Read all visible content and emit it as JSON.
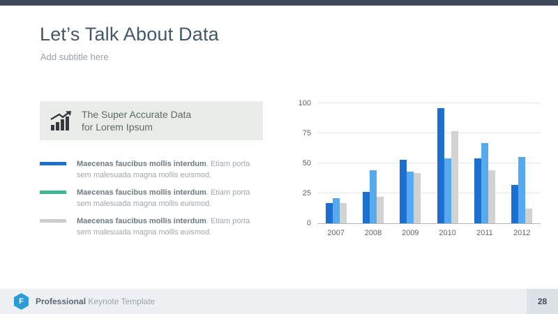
{
  "slide": {
    "title": "Let’s Talk About Data",
    "subtitle": "Add subtitle here"
  },
  "callout": {
    "icon": "bar-chart-growth-icon",
    "line1": "The Super Accurate Data",
    "line2": "for Lorem Ipsum"
  },
  "legend": {
    "items": [
      {
        "color": "#1d70cd",
        "bold": "Maecenas faucibus mollis interdum",
        "rest": ". Etiam porta sem malesuada magna mollis euismod."
      },
      {
        "color": "#3eb892",
        "bold": "Maecenas faucibus mollis interdum",
        "rest": ". Etiam porta sem malesuada magna mollis euismod."
      },
      {
        "color": "#cccccc",
        "bold": "Maecenas faucibus mollis interdum",
        "rest": ". Etiam porta sem malesuada magna mollis euismod."
      }
    ]
  },
  "chart_data": {
    "type": "bar",
    "title": "",
    "xlabel": "",
    "ylabel": "",
    "categories": [
      "2007",
      "2008",
      "2009",
      "2010",
      "2011",
      "2012"
    ],
    "series": [
      {
        "name": "dark-blue",
        "color": "#1d70cd",
        "values": [
          17,
          26,
          53,
          96,
          54,
          32
        ]
      },
      {
        "name": "light-blue",
        "color": "#58aaf0",
        "values": [
          21,
          44,
          43,
          54,
          67,
          55
        ]
      },
      {
        "name": "gray",
        "color": "#d2d2d2",
        "values": [
          17,
          22,
          42,
          77,
          44,
          12
        ]
      }
    ],
    "ylim": [
      0,
      100
    ],
    "yticks": [
      0,
      25,
      50,
      75,
      100
    ],
    "grid": true,
    "legend_position": "left-panel"
  },
  "footer": {
    "logo_letter": "F",
    "brand_bold": "Professional",
    "brand_rest": " Keynote Template",
    "page_number": "28"
  },
  "colors": {
    "top_bar": "#3c4a59",
    "title": "#44576b",
    "callout_bg": "#e9ece9",
    "footer_bg": "#eef1f3",
    "page_box_bg": "#dde2e6",
    "logo": "#2b9cd8"
  }
}
